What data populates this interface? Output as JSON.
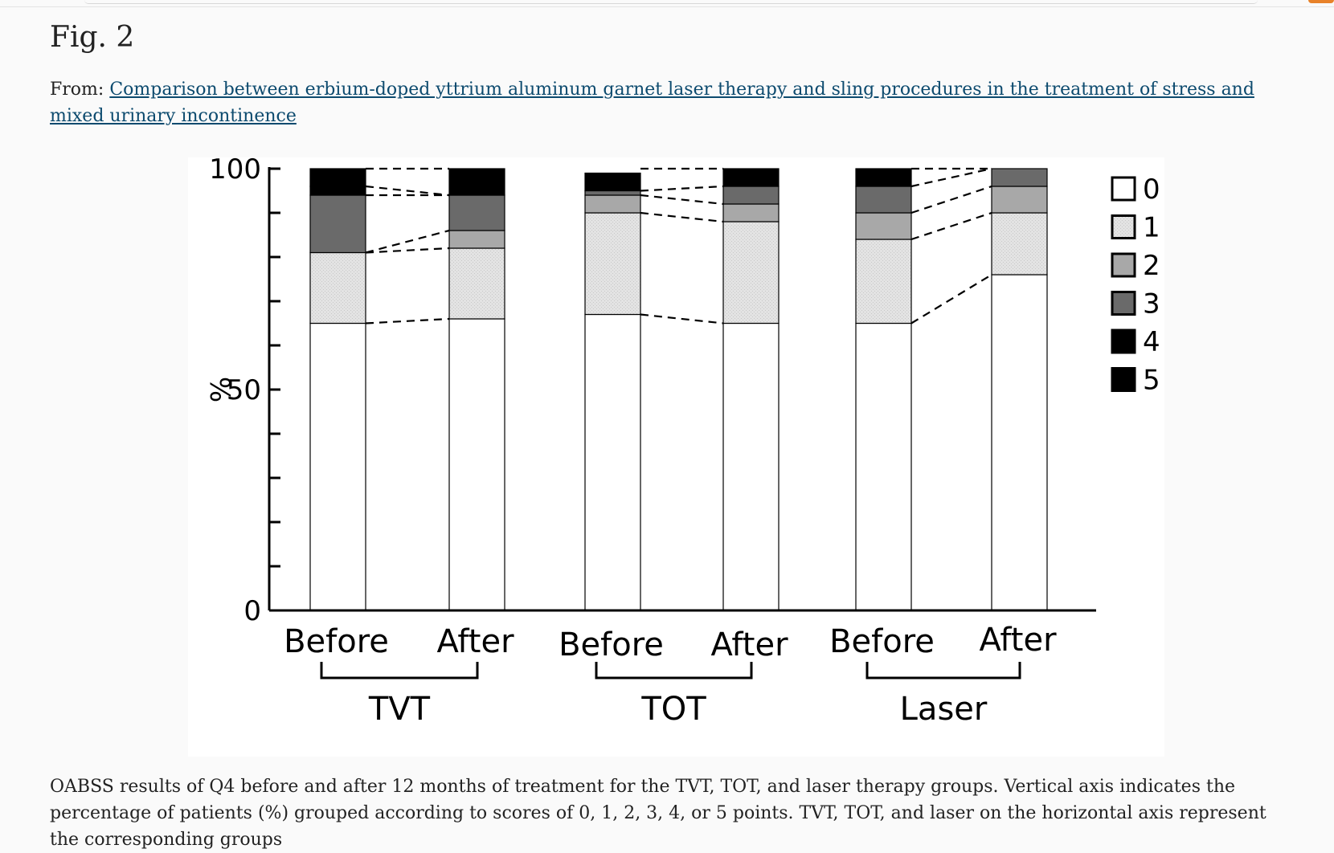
{
  "figure": {
    "title": "Fig. 2",
    "from_prefix": "From:",
    "article_link": "Comparison between erbium-doped yttrium aluminum garnet laser therapy and sling procedures in the treatment of stress and mixed urinary incontinence",
    "caption": "OABSS results of Q4 before and after 12 months of treatment for the TVT, TOT, and laser therapy groups. Vertical axis indicates the percentage of patients (%) grouped according to scores of 0, 1, 2, 3, 4, or 5 points. TVT, TOT, and laser on the horizontal axis represent the corresponding groups"
  },
  "chart_data": {
    "type": "bar",
    "stacked": true,
    "categories": [
      "Before",
      "After",
      "Before",
      "After",
      "Before",
      "After"
    ],
    "groups": [
      {
        "label": "TVT",
        "bars": [
          0,
          1
        ]
      },
      {
        "label": "TOT",
        "bars": [
          2,
          3
        ]
      },
      {
        "label": "Laser",
        "bars": [
          4,
          5
        ]
      }
    ],
    "series": [
      {
        "name": "0",
        "color": "#ffffff",
        "pattern": "none",
        "values": [
          65,
          66,
          67,
          65,
          65,
          76
        ]
      },
      {
        "name": "1",
        "color": "#e3e3e3",
        "pattern": "dots",
        "values": [
          16,
          16,
          23,
          23,
          19,
          14
        ]
      },
      {
        "name": "2",
        "color": "#a8a8a8",
        "pattern": "none",
        "values": [
          0,
          4,
          4,
          4,
          6,
          6
        ]
      },
      {
        "name": "3",
        "color": "#6a6a6a",
        "pattern": "none",
        "values": [
          13,
          8,
          1,
          4,
          6,
          4
        ]
      },
      {
        "name": "4",
        "color": "#000000",
        "pattern": "none",
        "values": [
          2,
          0,
          0,
          0,
          0,
          0
        ]
      },
      {
        "name": "5",
        "color": "#000000",
        "pattern": "none",
        "values": [
          4,
          6,
          4,
          4,
          4,
          0
        ]
      }
    ],
    "ylabel": "%",
    "ylim": [
      0,
      100
    ],
    "yticks": [
      "0",
      "50",
      "100"
    ],
    "legend": {
      "position": "right",
      "labels": [
        "0",
        "1",
        "2",
        "3",
        "4",
        "5"
      ]
    },
    "connecting_lines": "dashed",
    "grid": false
  }
}
